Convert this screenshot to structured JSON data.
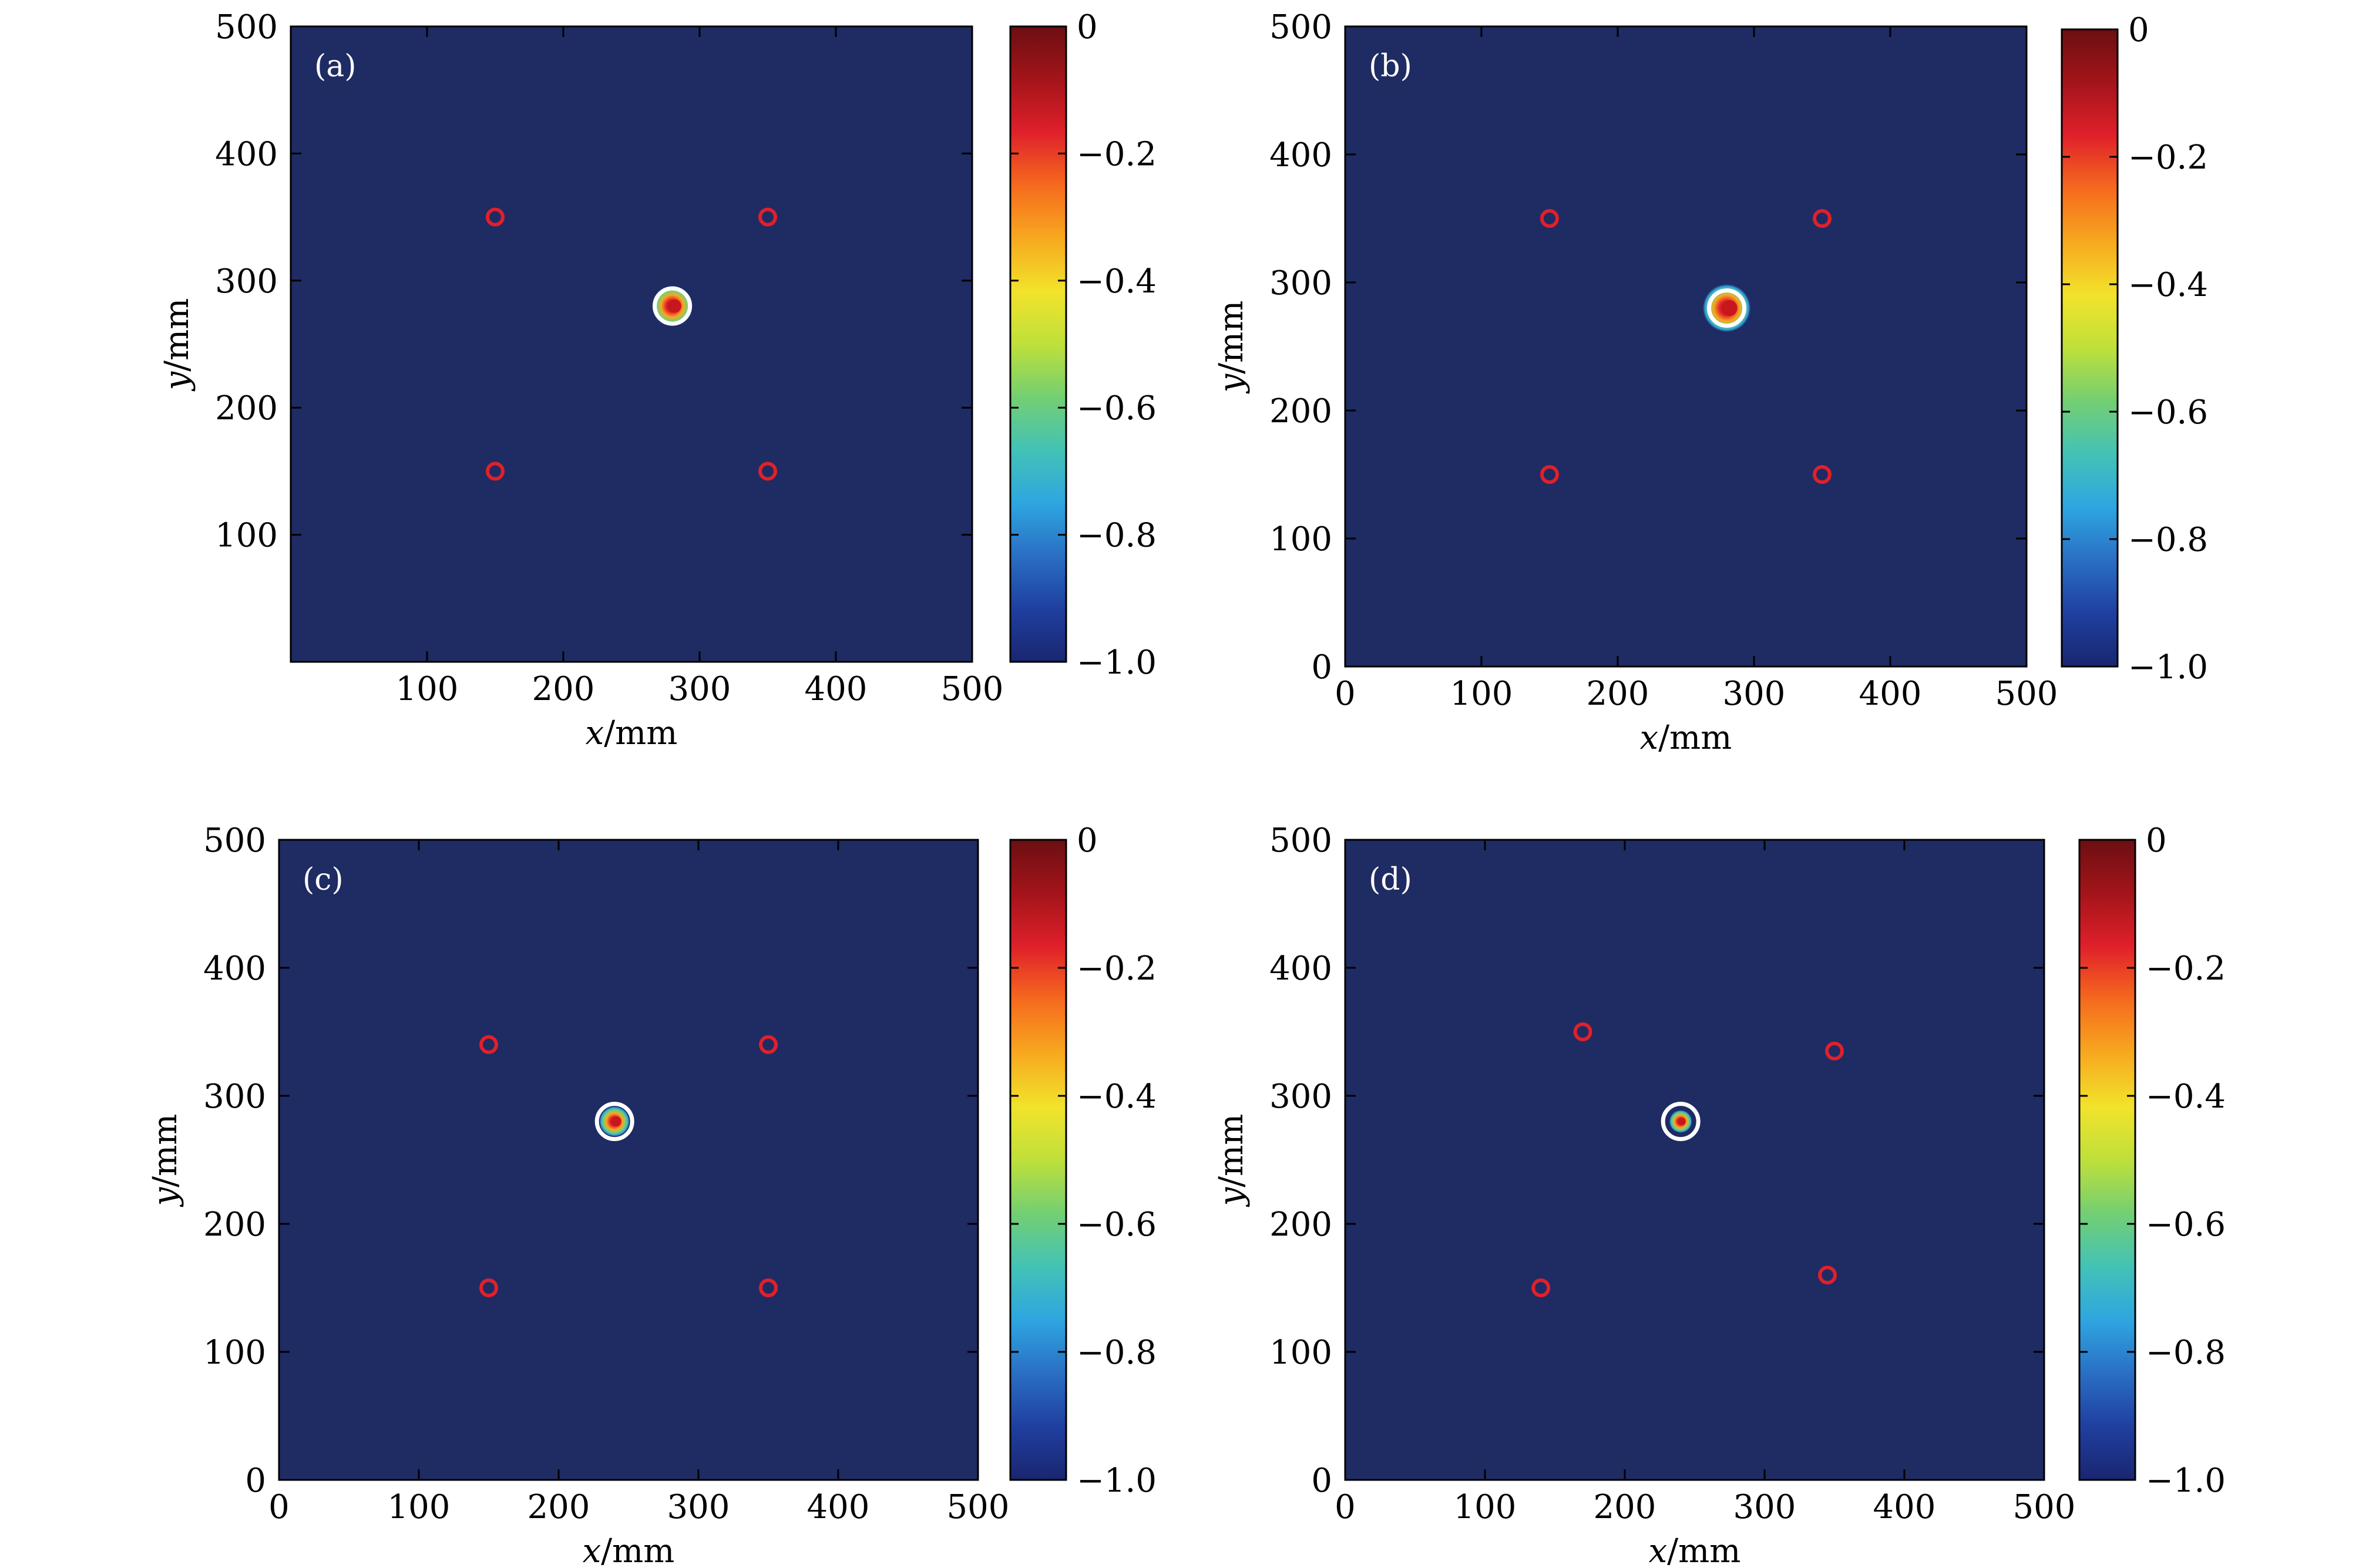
{
  "figure": {
    "background": "#ffffff",
    "plot_background": "#1f2b63",
    "sensor_color": "#e0202a",
    "target_ring_color": "#ffffff"
  },
  "colorbar": {
    "ticks": [
      0,
      -0.2,
      -0.4,
      -0.6,
      -0.8,
      -1.0
    ],
    "tick_labels": [
      "0",
      "−0.2",
      "−0.4",
      "−0.6",
      "−0.8",
      "−1.0"
    ],
    "colors": [
      "#6b0f12",
      "#a3141a",
      "#e0202a",
      "#f56a1e",
      "#f7a81f",
      "#f2e32b",
      "#bfe03a",
      "#74cf72",
      "#43c2b6",
      "#2ea6e0",
      "#2a6fc4",
      "#1f3f9f",
      "#1a2670"
    ]
  },
  "axes": {
    "xlabel_var": "x",
    "ylabel_var": "y",
    "unit": "/mm"
  },
  "chart_data": [
    {
      "type": "heatmap",
      "panel_label": "(a)",
      "xlim": [
        0,
        500
      ],
      "ylim": [
        0,
        500
      ],
      "xticks": [
        "100",
        "200",
        "300",
        "400",
        "500"
      ],
      "yticks": [
        "100",
        "200",
        "300",
        "400",
        "500"
      ],
      "sensors": [
        [
          150,
          350
        ],
        [
          350,
          350
        ],
        [
          150,
          150
        ],
        [
          350,
          150
        ]
      ],
      "target": [
        280,
        280
      ],
      "hotspot_radius": 11
    },
    {
      "type": "heatmap",
      "panel_label": "(b)",
      "xlim": [
        0,
        500
      ],
      "ylim": [
        0,
        500
      ],
      "xticks": [
        "0",
        "100",
        "200",
        "300",
        "400",
        "500"
      ],
      "yticks": [
        "0",
        "100",
        "200",
        "300",
        "400",
        "500"
      ],
      "sensors": [
        [
          150,
          350
        ],
        [
          350,
          350
        ],
        [
          150,
          150
        ],
        [
          350,
          150
        ]
      ],
      "target": [
        280,
        280
      ],
      "hotspot_radius": 13
    },
    {
      "type": "heatmap",
      "panel_label": "(c)",
      "xlim": [
        0,
        500
      ],
      "ylim": [
        0,
        500
      ],
      "xticks": [
        "0",
        "100",
        "200",
        "300",
        "400",
        "500"
      ],
      "yticks": [
        "0",
        "100",
        "200",
        "300",
        "400",
        "500"
      ],
      "sensors": [
        [
          150,
          340
        ],
        [
          350,
          340
        ],
        [
          150,
          150
        ],
        [
          350,
          150
        ]
      ],
      "target": [
        240,
        280
      ],
      "hotspot_radius": 8
    },
    {
      "type": "heatmap",
      "panel_label": "(d)",
      "xlim": [
        0,
        500
      ],
      "ylim": [
        0,
        500
      ],
      "xticks": [
        "0",
        "100",
        "200",
        "300",
        "400",
        "500"
      ],
      "yticks": [
        "0",
        "100",
        "200",
        "300",
        "400",
        "500"
      ],
      "sensors": [
        [
          170,
          350
        ],
        [
          350,
          335
        ],
        [
          140,
          150
        ],
        [
          345,
          160
        ]
      ],
      "target": [
        240,
        280
      ],
      "hotspot_radius": 6
    }
  ]
}
